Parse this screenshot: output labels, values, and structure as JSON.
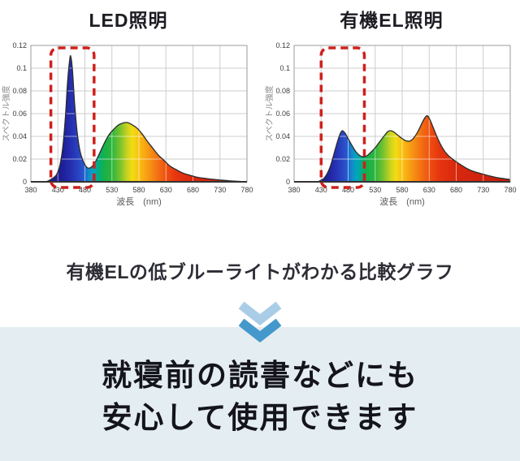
{
  "caption": {
    "text": "有機ELの低ブルーライトがわかる比較グラフ"
  },
  "info_box": {
    "bg": "#e4edf1",
    "text_color": "#14141c",
    "line1": "就寝前の読書などにも",
    "line2": "安心して使用できます"
  },
  "chevron": {
    "color_top": "#a9cde7",
    "color_bottom": "#4498cb"
  },
  "highlight_color": "#cf201c",
  "axis_style": {
    "grid_color": "#cdcdcd",
    "grid_over_fill_color": "rgba(255,255,255,0.55)",
    "border_color": "#9b9b9b",
    "axis_color": "#333333",
    "tick_color": "#3d3d3d",
    "label_color": "#8a8a8a",
    "curve_color": "#2b2b2b"
  },
  "spectrum_gradient": [
    {
      "nm": 380,
      "color": "#191076"
    },
    {
      "nm": 440,
      "color": "#1f1f9a"
    },
    {
      "nm": 460,
      "color": "#2736b8"
    },
    {
      "nm": 475,
      "color": "#2a52cc"
    },
    {
      "nm": 488,
      "color": "#0f8fca"
    },
    {
      "nm": 497,
      "color": "#00a8b8"
    },
    {
      "nm": 505,
      "color": "#00ad7c"
    },
    {
      "nm": 515,
      "color": "#17b04a"
    },
    {
      "nm": 530,
      "color": "#2cb53c"
    },
    {
      "nm": 545,
      "color": "#78c22f"
    },
    {
      "nm": 558,
      "color": "#c8d31f"
    },
    {
      "nm": 568,
      "color": "#f2dc12"
    },
    {
      "nm": 580,
      "color": "#f8c011"
    },
    {
      "nm": 592,
      "color": "#f8a413"
    },
    {
      "nm": 605,
      "color": "#f58714"
    },
    {
      "nm": 618,
      "color": "#f26a12"
    },
    {
      "nm": 632,
      "color": "#ee4d10"
    },
    {
      "nm": 650,
      "color": "#e5350f"
    },
    {
      "nm": 680,
      "color": "#d8280e"
    },
    {
      "nm": 780,
      "color": "#c21e0c"
    }
  ],
  "chart_data": [
    {
      "type": "area",
      "title": "LED照明",
      "xlabel": "波長　(nm)",
      "ylabel": "スペクトル強度",
      "xlim": [
        380,
        780
      ],
      "ylim": [
        0,
        0.12
      ],
      "x_ticks": [
        380,
        430,
        480,
        530,
        580,
        630,
        680,
        730,
        780
      ],
      "y_ticks": [
        0,
        0.02,
        0.04,
        0.06,
        0.08,
        0.1,
        0.12
      ],
      "y_tick_labels": [
        "0",
        "0.02",
        "0.04",
        "0.06",
        "0.08",
        "0.1",
        "0.12"
      ],
      "grid": true,
      "legend": "none",
      "highlight_nm": [
        417,
        497
      ],
      "points": [
        [
          380,
          0
        ],
        [
          405,
          0
        ],
        [
          413,
          0.001
        ],
        [
          420,
          0.003
        ],
        [
          427,
          0.006
        ],
        [
          433,
          0.013
        ],
        [
          439,
          0.03
        ],
        [
          444,
          0.058
        ],
        [
          448,
          0.088
        ],
        [
          452,
          0.108
        ],
        [
          454,
          0.11
        ],
        [
          457,
          0.098
        ],
        [
          461,
          0.068
        ],
        [
          466,
          0.042
        ],
        [
          471,
          0.027
        ],
        [
          477,
          0.018
        ],
        [
          483,
          0.013
        ],
        [
          488,
          0.012
        ],
        [
          494,
          0.014
        ],
        [
          500,
          0.018
        ],
        [
          508,
          0.026
        ],
        [
          516,
          0.034
        ],
        [
          524,
          0.041
        ],
        [
          533,
          0.046
        ],
        [
          542,
          0.05
        ],
        [
          552,
          0.052
        ],
        [
          560,
          0.052
        ],
        [
          568,
          0.05
        ],
        [
          577,
          0.047
        ],
        [
          586,
          0.042
        ],
        [
          595,
          0.036
        ],
        [
          605,
          0.03
        ],
        [
          615,
          0.024
        ],
        [
          626,
          0.019
        ],
        [
          637,
          0.014
        ],
        [
          648,
          0.011
        ],
        [
          660,
          0.008
        ],
        [
          673,
          0.006
        ],
        [
          688,
          0.004
        ],
        [
          703,
          0.003
        ],
        [
          720,
          0.002
        ],
        [
          745,
          0.001
        ],
        [
          780,
          0
        ]
      ]
    },
    {
      "type": "area",
      "title": "有機EL照明",
      "xlabel": "波長　(nm)",
      "ylabel": "スペクトル強度",
      "xlim": [
        380,
        780
      ],
      "ylim": [
        0,
        0.12
      ],
      "x_ticks": [
        380,
        430,
        480,
        530,
        580,
        630,
        680,
        730,
        780
      ],
      "y_ticks": [
        0,
        0.02,
        0.04,
        0.06,
        0.08,
        0.1,
        0.12
      ],
      "y_tick_labels": [
        "0",
        "0.02",
        "0.04",
        "0.06",
        "0.08",
        "0.1",
        "0.12"
      ],
      "grid": true,
      "legend": "none",
      "highlight_nm": [
        430,
        510
      ],
      "points": [
        [
          380,
          0
        ],
        [
          420,
          0
        ],
        [
          428,
          0.001
        ],
        [
          435,
          0.003
        ],
        [
          442,
          0.008
        ],
        [
          448,
          0.015
        ],
        [
          454,
          0.025
        ],
        [
          460,
          0.035
        ],
        [
          465,
          0.042
        ],
        [
          469,
          0.045
        ],
        [
          474,
          0.043
        ],
        [
          480,
          0.038
        ],
        [
          487,
          0.032
        ],
        [
          495,
          0.026
        ],
        [
          502,
          0.023
        ],
        [
          508,
          0.022
        ],
        [
          515,
          0.023
        ],
        [
          522,
          0.026
        ],
        [
          530,
          0.03
        ],
        [
          538,
          0.035
        ],
        [
          546,
          0.04
        ],
        [
          553,
          0.044
        ],
        [
          558,
          0.045
        ],
        [
          564,
          0.044
        ],
        [
          572,
          0.041
        ],
        [
          580,
          0.038
        ],
        [
          588,
          0.036
        ],
        [
          595,
          0.036
        ],
        [
          602,
          0.039
        ],
        [
          610,
          0.045
        ],
        [
          617,
          0.052
        ],
        [
          623,
          0.057
        ],
        [
          627,
          0.058
        ],
        [
          632,
          0.054
        ],
        [
          638,
          0.047
        ],
        [
          645,
          0.039
        ],
        [
          652,
          0.032
        ],
        [
          660,
          0.026
        ],
        [
          668,
          0.022
        ],
        [
          676,
          0.019
        ],
        [
          685,
          0.016
        ],
        [
          695,
          0.013
        ],
        [
          707,
          0.01
        ],
        [
          720,
          0.008
        ],
        [
          735,
          0.006
        ],
        [
          752,
          0.004
        ],
        [
          765,
          0.003
        ],
        [
          780,
          0.002
        ]
      ]
    }
  ]
}
